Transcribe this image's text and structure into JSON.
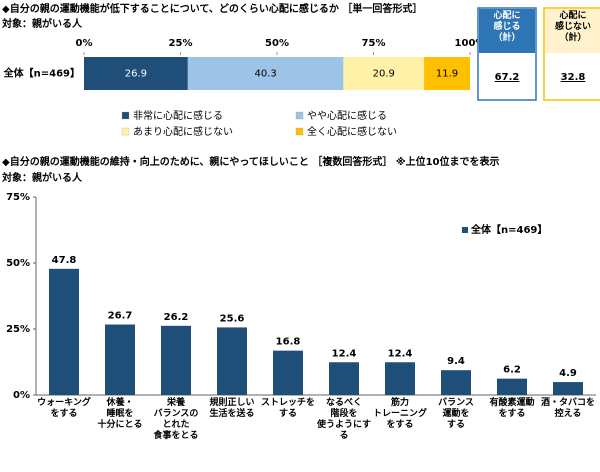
{
  "chart_data": [
    {
      "type": "bar",
      "orientation": "horizontal",
      "stacked": true,
      "title": "◆自分の親の運動機能が低下することについて、どのくらい心配に感じるか ［単一回答形式］",
      "subtitle": "対象：親がいる人",
      "categories": [
        "全体【n=469】"
      ],
      "series": [
        {
          "name": "非常に心配に感じる",
          "color": "#1f4e79",
          "values": [
            26.9
          ]
        },
        {
          "name": "やや心配に感じる",
          "color": "#9dc3e6",
          "values": [
            40.3
          ]
        },
        {
          "name": "あまり心配に感じない",
          "color": "#fff2a8",
          "values": [
            20.9
          ]
        },
        {
          "name": "全く心配に感じない",
          "color": "#ffc000",
          "values": [
            11.9
          ]
        }
      ],
      "xlim": [
        0,
        100
      ],
      "xticks": [
        {
          "value": 0,
          "label": "0%"
        },
        {
          "value": 25,
          "label": "25%"
        },
        {
          "value": 50,
          "label": "50%"
        },
        {
          "value": 75,
          "label": "75%"
        },
        {
          "value": 100,
          "label": "100%"
        }
      ],
      "summary": [
        {
          "label": "心配に\n感じる\n（計）",
          "value": 67.2,
          "color": "#2e75b6"
        },
        {
          "label": "心配に\n感じない\n（計）",
          "value": 32.8,
          "color": "#ffc000"
        }
      ]
    },
    {
      "type": "bar",
      "title": "◆自分の親の運動機能の維持・向上のために、親にやってほしいこと ［複数回答形式］ ※上位10位までを表示",
      "subtitle": "対象：親がいる人",
      "categories": [
        "ウォーキング\nをする",
        "休養・\n睡眠を\n十分にとる",
        "栄養\nバランスの\nとれた\n食事をとる",
        "規則正しい\n生活を送る",
        "ストレッチを\nする",
        "なるべく\n階段を\n使うようにす\nる",
        "筋力\nトレーニング\nをする",
        "バランス\n運動を\nする",
        "有酸素運動\nをする",
        "酒・タバコを\n控える"
      ],
      "series": [
        {
          "name": "全体【n=469】",
          "color": "#1f4e79",
          "values": [
            47.8,
            26.7,
            26.2,
            25.6,
            16.8,
            12.4,
            12.4,
            9.4,
            6.2,
            4.9
          ]
        }
      ],
      "ylim": [
        0,
        75
      ],
      "yticks": [
        {
          "value": 0,
          "label": "0%"
        },
        {
          "value": 25,
          "label": "25%"
        },
        {
          "value": 50,
          "label": "50%"
        },
        {
          "value": 75,
          "label": "75%"
        }
      ],
      "grid": false,
      "legend": "top-right"
    }
  ]
}
